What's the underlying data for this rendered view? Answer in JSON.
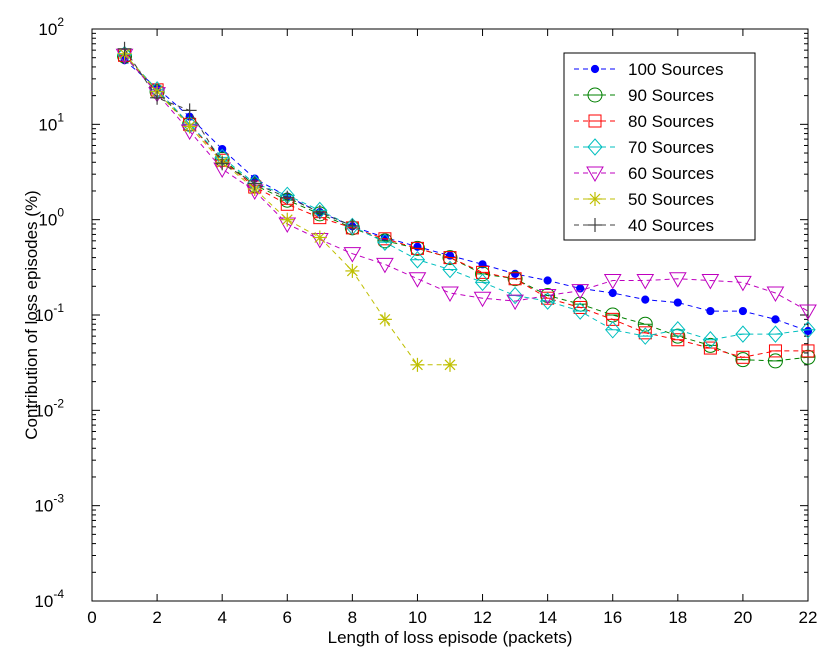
{
  "chart_data": {
    "type": "line",
    "title": "",
    "xlabel": "Length of loss episode (packets)",
    "ylabel": "Contribution of loss episodes (%)",
    "xlim": [
      0,
      22
    ],
    "ylim": [
      0.0001,
      100
    ],
    "yscale": "log",
    "x_ticks": [
      "0",
      "2",
      "4",
      "6",
      "8",
      "10",
      "12",
      "14",
      "16",
      "18",
      "20",
      "22"
    ],
    "y_ticks": [
      {
        "base": "10",
        "exp": "-4"
      },
      {
        "base": "10",
        "exp": "-3"
      },
      {
        "base": "10",
        "exp": "-2"
      },
      {
        "base": "10",
        "exp": "-1"
      },
      {
        "base": "10",
        "exp": "0"
      },
      {
        "base": "10",
        "exp": "1"
      },
      {
        "base": "10",
        "exp": "2"
      }
    ],
    "grid": false,
    "legend_position": "top-right",
    "series": [
      {
        "name": "100 Sources",
        "color": "#0000ff",
        "marker": "dot",
        "x": [
          1,
          2,
          3,
          4,
          5,
          6,
          7,
          8,
          9,
          10,
          11,
          12,
          13,
          14,
          15,
          16,
          17,
          18,
          19,
          20,
          21,
          22
        ],
        "y": [
          47,
          24,
          12,
          5.5,
          2.7,
          1.75,
          1.2,
          0.85,
          0.65,
          0.52,
          0.42,
          0.34,
          0.27,
          0.23,
          0.19,
          0.17,
          0.145,
          0.135,
          0.11,
          0.11,
          0.09,
          0.068
        ]
      },
      {
        "name": "90 Sources",
        "color": "#008000",
        "marker": "circle",
        "x": [
          1,
          2,
          3,
          4,
          5,
          6,
          7,
          8,
          9,
          10,
          11,
          12,
          13,
          14,
          15,
          16,
          17,
          18,
          19,
          20,
          21,
          22
        ],
        "y": [
          52,
          22,
          10,
          4.3,
          2.3,
          1.6,
          1.15,
          0.82,
          0.6,
          0.5,
          0.4,
          0.27,
          0.24,
          0.16,
          0.13,
          0.1,
          0.08,
          0.06,
          0.048,
          0.034,
          0.033,
          0.036
        ]
      },
      {
        "name": "80 Sources",
        "color": "#ff0000",
        "marker": "square",
        "x": [
          1,
          2,
          3,
          4,
          5,
          6,
          7,
          8,
          9,
          10,
          11,
          12,
          13,
          14,
          15,
          16,
          17,
          18,
          19,
          20,
          21,
          22
        ],
        "y": [
          53,
          23,
          10,
          4.2,
          2.2,
          1.45,
          1.05,
          0.82,
          0.63,
          0.5,
          0.4,
          0.28,
          0.24,
          0.15,
          0.12,
          0.09,
          0.065,
          0.055,
          0.045,
          0.036,
          0.042,
          0.042
        ]
      },
      {
        "name": "70 Sources",
        "color": "#00bfbf",
        "marker": "diamond",
        "x": [
          1,
          2,
          3,
          4,
          5,
          6,
          7,
          8,
          9,
          10,
          11,
          12,
          13,
          14,
          15,
          16,
          17,
          18,
          19,
          20,
          21,
          22
        ],
        "y": [
          54,
          23,
          10,
          4.5,
          2.4,
          1.8,
          1.25,
          0.85,
          0.58,
          0.38,
          0.3,
          0.22,
          0.16,
          0.14,
          0.11,
          0.07,
          0.06,
          0.07,
          0.055,
          0.063,
          0.063,
          0.07
        ]
      },
      {
        "name": "60 Sources",
        "color": "#bf00bf",
        "marker": "triangle-down",
        "x": [
          1,
          2,
          3,
          4,
          5,
          6,
          7,
          8,
          9,
          10,
          11,
          12,
          13,
          14,
          15,
          16,
          17,
          18,
          19,
          20,
          21,
          22
        ],
        "y": [
          53,
          21,
          8.5,
          3.4,
          2.0,
          0.9,
          0.62,
          0.44,
          0.34,
          0.24,
          0.17,
          0.15,
          0.14,
          0.16,
          0.18,
          0.23,
          0.23,
          0.24,
          0.23,
          0.22,
          0.17,
          0.11
        ]
      },
      {
        "name": "50 Sources",
        "color": "#bfbf00",
        "marker": "star",
        "x": [
          1,
          2,
          3,
          4,
          5,
          6,
          7,
          8,
          9,
          10,
          11
        ],
        "y": [
          55,
          22,
          9.5,
          4.0,
          2.1,
          1.0,
          0.65,
          0.29,
          0.09,
          0.03,
          0.03
        ]
      },
      {
        "name": "40 Sources",
        "color": "#404040",
        "marker": "plus",
        "x": [
          1,
          2,
          3,
          4,
          5,
          6,
          7,
          8
        ],
        "y": [
          62,
          19,
          14,
          3.9,
          2.4,
          1.7,
          1.2,
          0.86
        ]
      }
    ]
  }
}
